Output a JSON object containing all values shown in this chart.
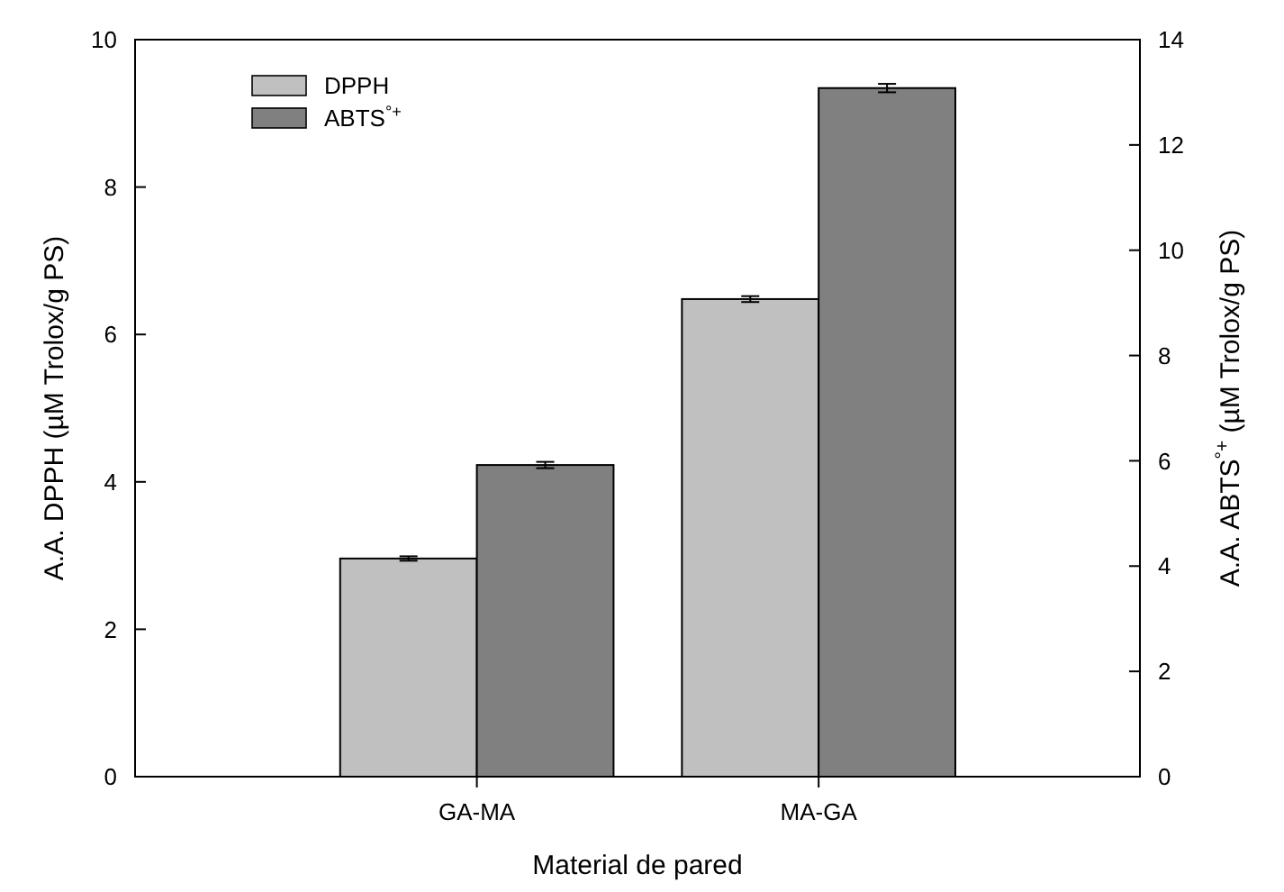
{
  "chart_data": {
    "type": "bar",
    "xlabel": "Material de pared",
    "ylabel": "A.A. DPPH (µM Trolox/g PS)",
    "y2label": "A.A. ABTS$^{°+}$ (µM Trolox/g PS)",
    "categories": [
      "GA-MA",
      "MA-GA"
    ],
    "series": [
      {
        "name": "DPPH",
        "color": "#c0c0c0",
        "values": [
          2.96,
          6.48
        ],
        "errors": [
          0.03,
          0.04
        ]
      },
      {
        "name": "ABTS$^{°+}$",
        "color": "#808080",
        "values": [
          5.92,
          13.08
        ],
        "errors": [
          0.06,
          0.08
        ],
        "axis": "y2"
      }
    ],
    "ylim": [
      0,
      10
    ],
    "yticks": [
      0,
      2,
      4,
      6,
      8,
      10
    ],
    "y2lim": [
      0,
      14
    ],
    "y2ticks": [
      0,
      2,
      4,
      6,
      8,
      10,
      12,
      14
    ],
    "legend": "top left",
    "grid": false
  }
}
